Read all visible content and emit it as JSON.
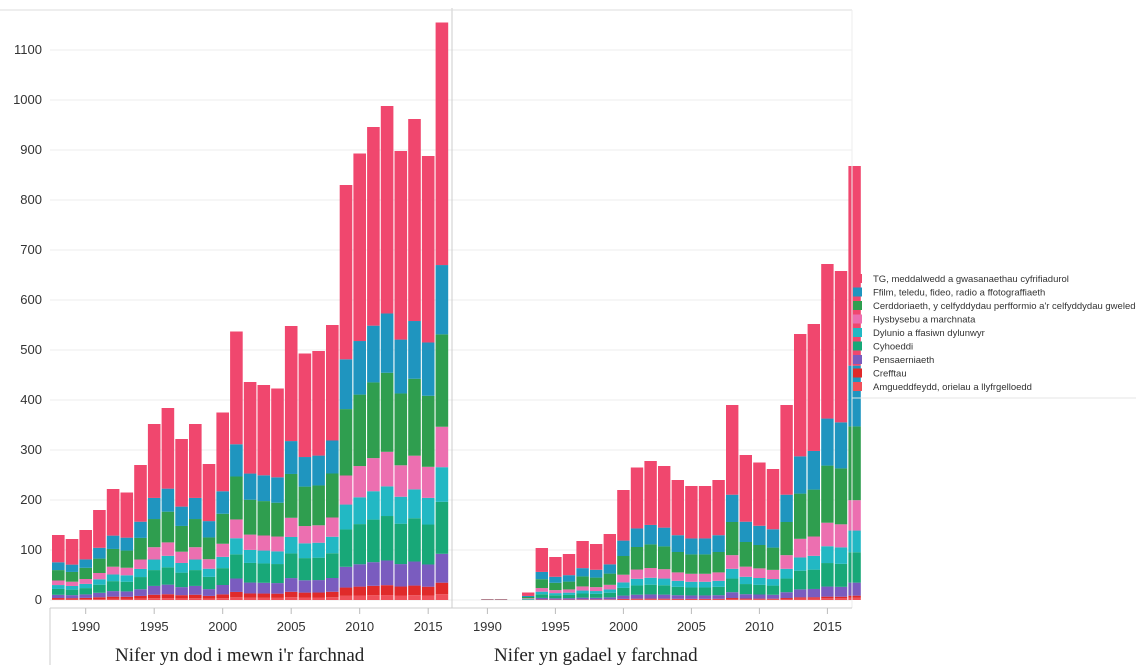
{
  "chart_data": {
    "type": "bar",
    "stacked": true,
    "ylim": [
      -20,
      1160
    ],
    "y_ticks": [
      0,
      100,
      200,
      300,
      400,
      500,
      600,
      700,
      800,
      900,
      1000,
      1100
    ],
    "grid": "horizontal",
    "legend_position": "right",
    "panels": [
      {
        "title": "Nifer yn dod i mewn i'r farchnad",
        "x_start": 1988,
        "x_end": 2018,
        "x_ticks": [
          1990,
          1995,
          2000,
          2005,
          2010,
          2015
        ],
        "totals": [
          130,
          122,
          140,
          180,
          222,
          215,
          270,
          352,
          384,
          322,
          352,
          272,
          375,
          537,
          436,
          430,
          423,
          548,
          493,
          498,
          550,
          830,
          893,
          946,
          988,
          898,
          962,
          888,
          1155
        ]
      },
      {
        "title": "Nifer yn gadael y farchnad",
        "x_start": 1988,
        "x_end": 2018,
        "x_ticks": [
          1990,
          1995,
          2000,
          2005,
          2010,
          2015
        ],
        "totals": [
          0,
          0,
          2,
          2,
          0,
          15,
          104,
          86,
          92,
          118,
          112,
          132,
          220,
          265,
          278,
          268,
          240,
          228,
          228,
          240,
          390,
          290,
          275,
          262,
          390,
          532,
          552,
          672,
          658,
          868
        ]
      }
    ],
    "series": [
      {
        "name": "TG, meddalwedd a gwasanaethau cyfrifiadurol",
        "color": "#f0476e"
      },
      {
        "name": "Ffilm, teledu, fideo, radio a ffotograffiaeth",
        "color": "#1f95bf"
      },
      {
        "name": "Cerddoriaeth, y celfyddydau perfformio a'r celfyddydau gweledol",
        "color": "#2f9e4f"
      },
      {
        "name": "Hysbysebu  a marchnata",
        "color": "#ec6fb0"
      },
      {
        "name": "Dylunio a ffasiwn dylunwyr",
        "color": "#22b8c4"
      },
      {
        "name": "Cyhoeddi",
        "color": "#18a878"
      },
      {
        "name": "Pensaerniaeth",
        "color": "#7a5cbf"
      },
      {
        "name": "Crefftau",
        "color": "#e02a2a"
      },
      {
        "name": "Amgueddfeydd, orielau a llyfrgelloedd",
        "color": "#f0505a"
      }
    ]
  }
}
